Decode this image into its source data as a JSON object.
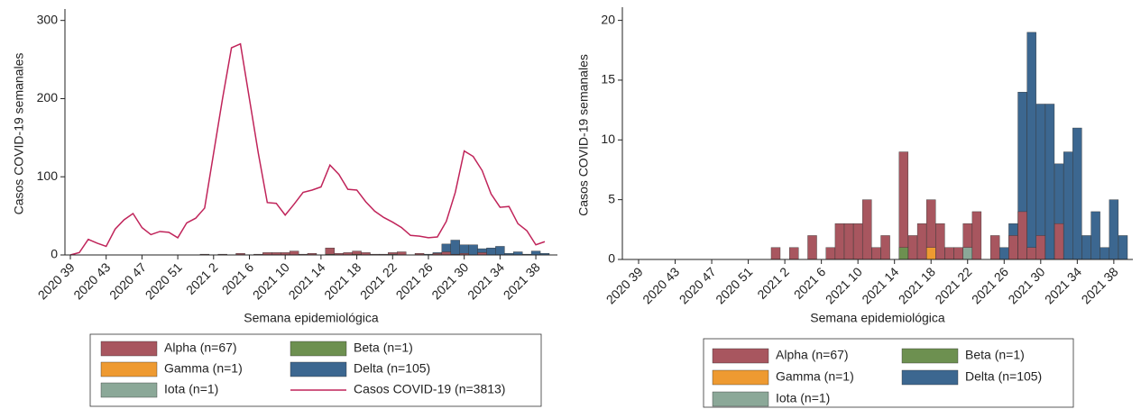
{
  "chart_data": [
    {
      "type": "bar",
      "y_label": "Casos COVID-19 semanales",
      "x_label": "Semana epidemiológica",
      "categories": [
        "2020 39",
        null,
        null,
        null,
        "2020 43",
        null,
        null,
        null,
        "2020 47",
        null,
        null,
        null,
        "2020 51",
        null,
        null,
        null,
        "2021 2",
        null,
        null,
        null,
        "2021 6",
        null,
        null,
        null,
        "2021 10",
        null,
        null,
        null,
        "2021 14",
        null,
        null,
        null,
        "2021 18",
        null,
        null,
        null,
        "2021 22",
        null,
        null,
        null,
        "2021 26",
        null,
        null,
        null,
        "2021 30",
        null,
        null,
        null,
        "2021 34",
        null,
        null,
        null,
        "2021 38",
        null
      ],
      "ylim": [
        0,
        310
      ],
      "yticks": [
        0,
        100,
        200,
        300
      ],
      "series": [
        {
          "name": "Alpha (n=67)",
          "color": "#a8565f",
          "values": [
            0,
            0,
            0,
            0,
            0,
            0,
            0,
            0,
            0,
            0,
            0,
            0,
            0,
            0,
            0,
            1,
            0,
            1,
            0,
            2,
            0,
            1,
            3,
            3,
            3,
            5,
            1,
            2,
            0,
            9,
            2,
            3,
            5,
            3,
            1,
            1,
            3,
            4,
            0,
            2,
            0,
            2,
            4,
            1,
            2,
            0,
            3,
            0,
            0,
            0,
            0,
            0,
            0,
            0
          ]
        },
        {
          "name": "Beta (n=1)",
          "color": "#6d9050",
          "values": [
            0,
            0,
            0,
            0,
            0,
            0,
            0,
            0,
            0,
            0,
            0,
            0,
            0,
            0,
            0,
            0,
            0,
            0,
            0,
            0,
            0,
            0,
            0,
            0,
            0,
            0,
            0,
            0,
            0,
            1,
            0,
            0,
            0,
            0,
            0,
            0,
            0,
            0,
            0,
            0,
            0,
            0,
            0,
            0,
            0,
            0,
            0,
            0,
            0,
            0,
            0,
            0,
            0,
            0
          ]
        },
        {
          "name": "Gamma (n=1)",
          "color": "#ee9a31",
          "values": [
            0,
            0,
            0,
            0,
            0,
            0,
            0,
            0,
            0,
            0,
            0,
            0,
            0,
            0,
            0,
            0,
            0,
            0,
            0,
            0,
            0,
            0,
            0,
            0,
            0,
            0,
            0,
            0,
            0,
            0,
            0,
            0,
            1,
            0,
            0,
            0,
            0,
            0,
            0,
            0,
            0,
            0,
            0,
            0,
            0,
            0,
            0,
            0,
            0,
            0,
            0,
            0,
            0,
            0
          ]
        },
        {
          "name": "Delta (n=105)",
          "color": "#3c6790",
          "values": [
            0,
            0,
            0,
            0,
            0,
            0,
            0,
            0,
            0,
            0,
            0,
            0,
            0,
            0,
            0,
            0,
            0,
            0,
            0,
            0,
            0,
            0,
            0,
            0,
            0,
            0,
            0,
            0,
            0,
            0,
            0,
            0,
            0,
            0,
            0,
            0,
            0,
            0,
            0,
            0,
            1,
            3,
            14,
            19,
            13,
            13,
            8,
            9,
            11,
            2,
            4,
            1,
            5,
            2
          ]
        },
        {
          "name": "Iota (n=1)",
          "color": "#8ba898",
          "values": [
            0,
            0,
            0,
            0,
            0,
            0,
            0,
            0,
            0,
            0,
            0,
            0,
            0,
            0,
            0,
            0,
            0,
            0,
            0,
            0,
            0,
            0,
            0,
            0,
            0,
            0,
            0,
            0,
            0,
            0,
            0,
            0,
            0,
            0,
            0,
            0,
            1,
            0,
            0,
            0,
            0,
            0,
            0,
            0,
            0,
            0,
            0,
            0,
            0,
            0,
            0,
            0,
            0,
            0
          ]
        },
        {
          "name": "Casos COVID-19 (n=3813)",
          "color": "#c0245a",
          "type": "line",
          "values": [
            0,
            3,
            20,
            15,
            11,
            33,
            45,
            53,
            35,
            26,
            30,
            29,
            22,
            41,
            47,
            60,
            130,
            200,
            265,
            270,
            200,
            130,
            67,
            66,
            51,
            65,
            80,
            83,
            87,
            115,
            103,
            84,
            83,
            68,
            56,
            48,
            42,
            35,
            25,
            24,
            22,
            23,
            43,
            80,
            133,
            126,
            108,
            78,
            61,
            62,
            40,
            31,
            13,
            17
          ]
        }
      ]
    },
    {
      "type": "bar",
      "y_label": "Casos COVID-19 semanales",
      "x_label": "Semana epidemiológica",
      "categories": [
        "2020 39",
        null,
        null,
        null,
        "2020 43",
        null,
        null,
        null,
        "2020 47",
        null,
        null,
        null,
        "2020 51",
        null,
        null,
        null,
        "2021 2",
        null,
        null,
        null,
        "2021 6",
        null,
        null,
        null,
        "2021 10",
        null,
        null,
        null,
        "2021 14",
        null,
        null,
        null,
        "2021 18",
        null,
        null,
        null,
        "2021 22",
        null,
        null,
        null,
        "2021 26",
        null,
        null,
        null,
        "2021 30",
        null,
        null,
        null,
        "2021 34",
        null,
        null,
        null,
        "2021 38",
        null
      ],
      "ylim": [
        0,
        20.8
      ],
      "yticks": [
        0,
        5,
        10,
        15,
        20
      ],
      "series": [
        {
          "name": "Alpha (n=67)",
          "color": "#a8565f",
          "values": [
            0,
            0,
            0,
            0,
            0,
            0,
            0,
            0,
            0,
            0,
            0,
            0,
            0,
            0,
            0,
            1,
            0,
            1,
            0,
            2,
            0,
            1,
            3,
            3,
            3,
            5,
            1,
            2,
            0,
            9,
            2,
            3,
            5,
            3,
            1,
            1,
            3,
            4,
            0,
            2,
            0,
            2,
            4,
            1,
            2,
            0,
            3,
            0,
            0,
            0,
            0,
            0,
            0,
            0
          ]
        },
        {
          "name": "Beta (n=1)",
          "color": "#6d9050",
          "values": [
            0,
            0,
            0,
            0,
            0,
            0,
            0,
            0,
            0,
            0,
            0,
            0,
            0,
            0,
            0,
            0,
            0,
            0,
            0,
            0,
            0,
            0,
            0,
            0,
            0,
            0,
            0,
            0,
            0,
            1,
            0,
            0,
            0,
            0,
            0,
            0,
            0,
            0,
            0,
            0,
            0,
            0,
            0,
            0,
            0,
            0,
            0,
            0,
            0,
            0,
            0,
            0,
            0,
            0
          ]
        },
        {
          "name": "Gamma (n=1)",
          "color": "#ee9a31",
          "values": [
            0,
            0,
            0,
            0,
            0,
            0,
            0,
            0,
            0,
            0,
            0,
            0,
            0,
            0,
            0,
            0,
            0,
            0,
            0,
            0,
            0,
            0,
            0,
            0,
            0,
            0,
            0,
            0,
            0,
            0,
            0,
            0,
            1,
            0,
            0,
            0,
            0,
            0,
            0,
            0,
            0,
            0,
            0,
            0,
            0,
            0,
            0,
            0,
            0,
            0,
            0,
            0,
            0,
            0
          ]
        },
        {
          "name": "Delta (n=105)",
          "color": "#3c6790",
          "values": [
            0,
            0,
            0,
            0,
            0,
            0,
            0,
            0,
            0,
            0,
            0,
            0,
            0,
            0,
            0,
            0,
            0,
            0,
            0,
            0,
            0,
            0,
            0,
            0,
            0,
            0,
            0,
            0,
            0,
            0,
            0,
            0,
            0,
            0,
            0,
            0,
            0,
            0,
            0,
            0,
            1,
            3,
            14,
            19,
            13,
            13,
            8,
            9,
            11,
            2,
            4,
            1,
            5,
            2
          ]
        },
        {
          "name": "Iota (n=1)",
          "color": "#8ba898",
          "values": [
            0,
            0,
            0,
            0,
            0,
            0,
            0,
            0,
            0,
            0,
            0,
            0,
            0,
            0,
            0,
            0,
            0,
            0,
            0,
            0,
            0,
            0,
            0,
            0,
            0,
            0,
            0,
            0,
            0,
            0,
            0,
            0,
            0,
            0,
            0,
            0,
            1,
            0,
            0,
            0,
            0,
            0,
            0,
            0,
            0,
            0,
            0,
            0,
            0,
            0,
            0,
            0,
            0,
            0
          ]
        }
      ]
    }
  ]
}
